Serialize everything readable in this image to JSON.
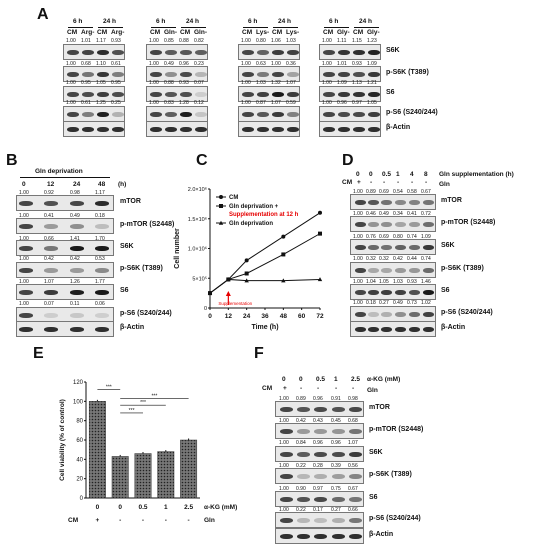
{
  "panel_letters": [
    "A",
    "B",
    "C",
    "D",
    "E",
    "F"
  ],
  "panelA": {
    "groups": [
      {
        "label": "6 h",
        "lanes": [
          "CM",
          "Arg-"
        ]
      },
      {
        "label": "24 h",
        "lanes": [
          "CM",
          "Arg-"
        ]
      },
      {
        "label": "6 h",
        "lanes": [
          "CM",
          "Gln-"
        ]
      },
      {
        "label": "24 h",
        "lanes": [
          "CM",
          "Gln-"
        ]
      },
      {
        "label": "6 h",
        "lanes": [
          "CM",
          "Lys-"
        ]
      },
      {
        "label": "24 h",
        "lanes": [
          "CM",
          "Lys-"
        ]
      },
      {
        "label": "6 h",
        "lanes": [
          "CM",
          "Gly-"
        ]
      },
      {
        "label": "24 h",
        "lanes": [
          "CM",
          "Gly-"
        ]
      }
    ],
    "rows": [
      {
        "label": "S6K",
        "values": [
          "1.00",
          "1.01",
          "1.17",
          "0.93",
          "1.00",
          "0.85",
          "0.88",
          "0.82",
          "1.00",
          "0.80",
          "1.06",
          "1.03",
          "1.00",
          "1.11",
          "1.15",
          "1.23"
        ]
      },
      {
        "label": "p-S6K (T389)",
        "values": [
          "1.00",
          "0.68",
          "1.10",
          "0.61",
          "1.00",
          "0.49",
          "0.96",
          "0.23",
          "1.00",
          "0.63",
          "1.00",
          "0.36",
          "1.00",
          "1.01",
          "0.93",
          "1.09"
        ]
      },
      {
        "label": "S6",
        "values": [
          "1.00",
          "0.95",
          "1.05",
          "0.95",
          "1.00",
          "0.88",
          "0.93",
          "0.07",
          "1.00",
          "1.03",
          "1.32",
          "1.07",
          "1.00",
          "1.09",
          "1.13",
          "1.21"
        ]
      },
      {
        "label": "p-S6 (S240/244)",
        "values": [
          "1.00",
          "0.61",
          "1.25",
          "0.25",
          "1.00",
          "0.83",
          "1.28",
          "0.12",
          "1.00",
          "0.87",
          "1.07",
          "0.59",
          "1.00",
          "0.96",
          "0.97",
          "1.05"
        ]
      },
      {
        "label": "β-Actin",
        "values": []
      }
    ]
  },
  "panelB": {
    "header": "Gln deprivation",
    "lanes": [
      "0",
      "12",
      "24",
      "48"
    ],
    "unit": "(h)",
    "rows": [
      {
        "label": "mTOR",
        "values": [
          "1.00",
          "0.92",
          "0.98",
          "1.17"
        ]
      },
      {
        "label": "p-mTOR (S2448)",
        "values": [
          "1.00",
          "0.41",
          "0.49",
          "0.18"
        ]
      },
      {
        "label": "S6K",
        "values": [
          "1.00",
          "0.66",
          "1.41",
          "1.70"
        ]
      },
      {
        "label": "p-S6K (T389)",
        "values": [
          "1.00",
          "0.42",
          "0.42",
          "0.53"
        ]
      },
      {
        "label": "S6",
        "values": [
          "1.00",
          "1.07",
          "1.26",
          "1.77"
        ]
      },
      {
        "label": "p-S6 (S240/244)",
        "values": [
          "1.00",
          "0.07",
          "0.11",
          "0.06"
        ]
      },
      {
        "label": "β-Actin",
        "values": []
      }
    ]
  },
  "panelD": {
    "header": "Gln supplementation (h)",
    "lanes": [
      "0",
      "0",
      "0.5",
      "1",
      "4",
      "8"
    ],
    "cm_row": {
      "label": "CM",
      "values": [
        "+",
        "-",
        "-",
        "-",
        "-",
        "-"
      ]
    },
    "gln_row": {
      "label": "Gln",
      "values": [
        "-",
        "-",
        "+",
        "+",
        "+",
        "+"
      ]
    },
    "rows": [
      {
        "label": "mTOR",
        "values": [
          "1.00",
          "0.89",
          "0.69",
          "0.54",
          "0.58",
          "0.67"
        ]
      },
      {
        "label": "p-mTOR (S2448)",
        "values": [
          "1.00",
          "0.46",
          "0.49",
          "0.34",
          "0.41",
          "0.72"
        ]
      },
      {
        "label": "S6K",
        "values": [
          "1.00",
          "0.76",
          "0.69",
          "0.80",
          "0.74",
          "1.09"
        ]
      },
      {
        "label": "p-S6K (T389)",
        "values": [
          "1.00",
          "0.32",
          "0.32",
          "0.42",
          "0.44",
          "0.74"
        ]
      },
      {
        "label": "S6",
        "values": [
          "1.00",
          "1.04",
          "1.05",
          "1.03",
          "0.93",
          "1.46"
        ]
      },
      {
        "label": "p-S6 (S240/244)",
        "values": [
          "1.00",
          "0.18",
          "0.27",
          "0.49",
          "0.73",
          "1.02"
        ]
      },
      {
        "label": "β-Actin",
        "values": []
      }
    ]
  },
  "panelF": {
    "header": "α-KG (mM)",
    "lanes": [
      "0",
      "0",
      "0.5",
      "1",
      "2.5"
    ],
    "cm_row": {
      "label": "CM",
      "values": [
        "+",
        "-",
        "-",
        "-",
        "-"
      ]
    },
    "gln_row": {
      "label": "Gln",
      "values": [
        "-",
        "-",
        "-",
        "-",
        "-"
      ]
    },
    "rows": [
      {
        "label": "mTOR",
        "values": [
          "1.00",
          "0.89",
          "0.96",
          "0.91",
          "0.98"
        ]
      },
      {
        "label": "p-mTOR (S2448)",
        "values": [
          "1.00",
          "0.42",
          "0.43",
          "0.45",
          "0.68"
        ]
      },
      {
        "label": "S6K",
        "values": [
          "1.00",
          "0.84",
          "0.96",
          "0.96",
          "1.07"
        ]
      },
      {
        "label": "p-S6K (T389)",
        "values": [
          "1.00",
          "0.22",
          "0.28",
          "0.39",
          "0.56"
        ]
      },
      {
        "label": "S6",
        "values": [
          "1.00",
          "0.90",
          "0.97",
          "0.75",
          "0.67"
        ]
      },
      {
        "label": "p-S6 (S240/244)",
        "values": [
          "1.00",
          "0.22",
          "0.17",
          "0.27",
          "0.66"
        ]
      },
      {
        "label": "β-Actin",
        "values": []
      }
    ]
  },
  "chart_data": [
    {
      "type": "line",
      "panel": "C",
      "x": [
        0,
        12,
        24,
        48,
        72
      ],
      "xlabel": "Time (h)",
      "ylabel": "Cell number",
      "yticks": [
        "0",
        "5×10⁵",
        "1.0×10⁶",
        "1.5×10⁶",
        "2.0×10⁶"
      ],
      "xticks": [
        "0",
        "12",
        "24",
        "36",
        "48",
        "60",
        "72"
      ],
      "ylim": [
        0,
        2000000
      ],
      "xlim": [
        0,
        72
      ],
      "series": [
        {
          "name": "CM",
          "values": [
            250000,
            480000,
            800000,
            1200000,
            1600000
          ],
          "marker": "circle"
        },
        {
          "name": "Gln deprivation + Supplementation at 12 h",
          "values": [
            250000,
            480000,
            580000,
            900000,
            1250000
          ],
          "marker": "square"
        },
        {
          "name": "Gln deprivation",
          "values": [
            250000,
            480000,
            460000,
            460000,
            480000
          ],
          "marker": "triangle"
        }
      ],
      "annotation": "Supplementation",
      "annotation_x": 12,
      "annotation_color": "#e60000"
    },
    {
      "type": "bar",
      "panel": "E",
      "categories": [
        "0",
        "0",
        "0.5",
        "1",
        "2.5"
      ],
      "values": [
        100,
        43,
        46,
        48,
        60
      ],
      "ylabel": "Cell viability (% of control)",
      "xlabel": "α-KG (mM)",
      "yticks": [
        "0",
        "20",
        "40",
        "60",
        "80",
        "100",
        "120"
      ],
      "ylim": [
        0,
        120
      ],
      "cm_row": {
        "label": "CM",
        "values": [
          "+",
          "-",
          "-",
          "-",
          "-"
        ]
      },
      "gln_row": {
        "label": "Gln",
        "values": [
          "-",
          "-",
          "-",
          "-",
          "-"
        ]
      },
      "significance": "***"
    }
  ]
}
